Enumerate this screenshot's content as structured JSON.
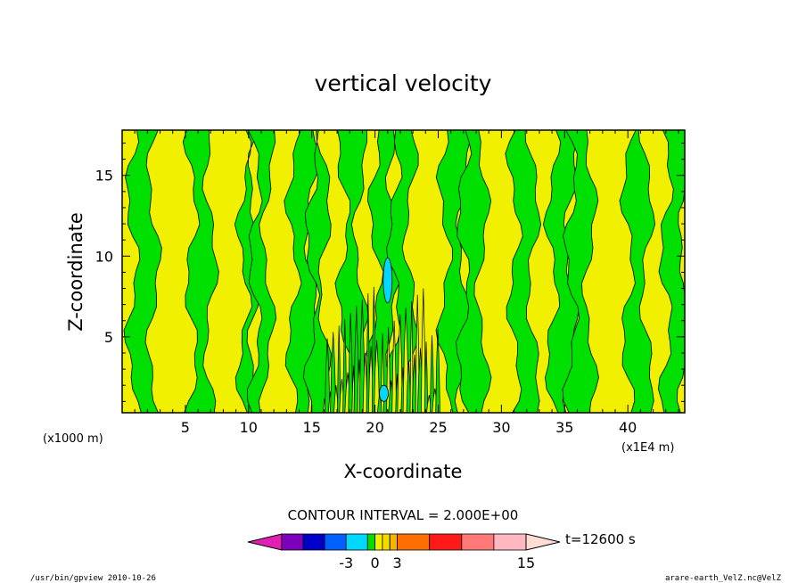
{
  "chart_data": {
    "type": "heatmap",
    "title": "vertical velocity",
    "xlabel": "X-coordinate",
    "ylabel": "Z-coordinate",
    "x_unit_left": "(x1000 m)",
    "x_unit_right": "(x1E4 m)",
    "xlim": [
      0,
      44.5
    ],
    "ylim": [
      0.3,
      17.8
    ],
    "x_ticks": [
      5,
      10,
      15,
      20,
      25,
      30,
      35,
      40
    ],
    "y_ticks": [
      5,
      10,
      15
    ],
    "contour_interval_text": "CONTOUR INTERVAL = 2.000E+00",
    "time_label": "t=12600 s",
    "colorbar": {
      "levels": [
        -15,
        -9,
        -7,
        -5,
        -3,
        -1,
        0,
        1,
        2,
        3,
        6,
        9,
        12,
        15,
        18
      ],
      "colors": [
        "#e21fb3",
        "#7d00bd",
        "#0000c8",
        "#0060ff",
        "#00d8ff",
        "#00e000",
        "#f0f000",
        "#f2dc00",
        "#f5b800",
        "#ff6e00",
        "#ff1a1a",
        "#ff7878",
        "#ffb8c0",
        "#ffdcd4"
      ],
      "tick_labels": [
        {
          "value": -3,
          "label": "-3"
        },
        {
          "value": 0,
          "label": "0"
        },
        {
          "value": 3,
          "label": "3"
        },
        {
          "value": 15,
          "label": "15"
        }
      ]
    },
    "field_regions": [
      {
        "w": "negative (-1 to 0)",
        "color": "#00e000"
      },
      {
        "w": "positive (0 to 1)",
        "color": "#f0f000"
      },
      {
        "w": "-3 to -1",
        "color": "#00d8ff"
      }
    ],
    "columns": [
      {
        "x": 0.0,
        "w": 1
      },
      {
        "x": 0.8,
        "w": -1
      },
      {
        "x": 2.5,
        "w": 1
      },
      {
        "x": 4.0,
        "w": 1
      },
      {
        "x": 5.5,
        "w": -1
      },
      {
        "x": 7.0,
        "w": 1
      },
      {
        "x": 8.5,
        "w": 1
      },
      {
        "x": 9.6,
        "w": -1
      },
      {
        "x": 10.5,
        "w": -1
      },
      {
        "x": 11.5,
        "w": 1
      },
      {
        "x": 12.5,
        "w": 1
      },
      {
        "x": 13.5,
        "w": -1
      },
      {
        "x": 15.0,
        "w": -1
      },
      {
        "x": 16.0,
        "w": 1
      },
      {
        "x": 17.5,
        "w": -1
      },
      {
        "x": 18.8,
        "w": 1
      },
      {
        "x": 20.0,
        "w": -1
      },
      {
        "x": 21.5,
        "w": -1
      },
      {
        "x": 22.8,
        "w": 1
      },
      {
        "x": 24.0,
        "w": 1
      },
      {
        "x": 25.5,
        "w": -1
      },
      {
        "x": 27.0,
        "w": -1
      },
      {
        "x": 28.5,
        "w": 1
      },
      {
        "x": 30.0,
        "w": 1
      },
      {
        "x": 31.0,
        "w": -1
      },
      {
        "x": 32.5,
        "w": 1
      },
      {
        "x": 34.0,
        "w": -1
      },
      {
        "x": 35.5,
        "w": -1
      },
      {
        "x": 37.0,
        "w": 1
      },
      {
        "x": 38.5,
        "w": 1
      },
      {
        "x": 40.0,
        "w": -1
      },
      {
        "x": 41.5,
        "w": 1
      },
      {
        "x": 43.0,
        "w": -1
      },
      {
        "x": 44.5,
        "w": 1
      }
    ],
    "negative_patches": [
      {
        "x": 21.0,
        "z": 8.5,
        "w": -2
      },
      {
        "x": 20.7,
        "z": 1.5,
        "w": -2
      }
    ]
  },
  "footer": {
    "left": "/usr/bin/gpview   2010-10-26",
    "right": "arare-earth_VelZ.nc@VelZ"
  }
}
